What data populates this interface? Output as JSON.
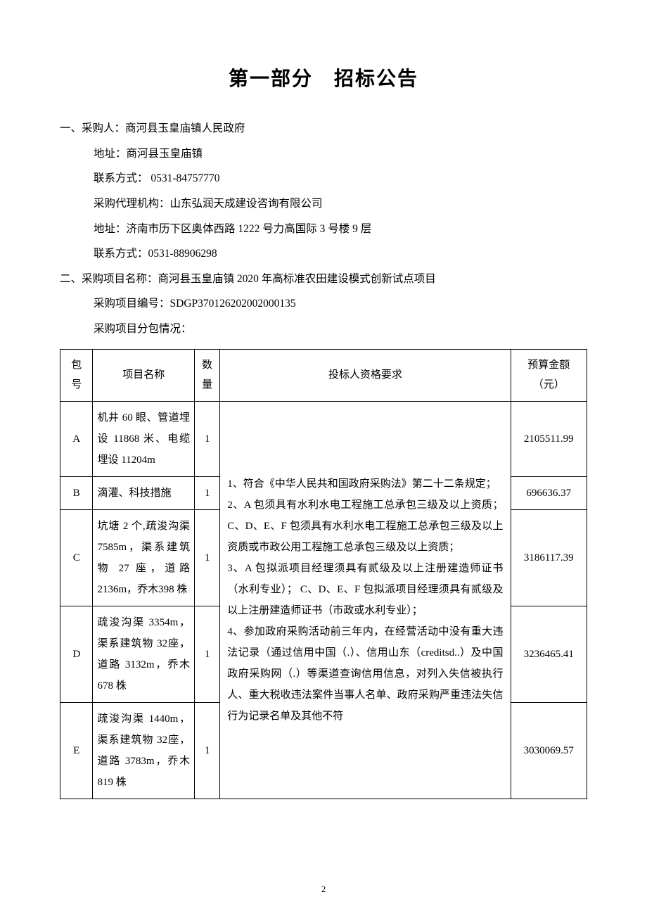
{
  "title_part1": "第一部分",
  "title_part2": "招标公告",
  "section1": {
    "heading": "一、采购人：商河县玉皇庙镇人民政府",
    "addr": "地址：商河县玉皇庙镇",
    "contact": "联系方式： 0531-84757770",
    "agency": "采购代理机构：山东弘润天成建设咨询有限公司",
    "agency_addr": "地址：济南市历下区奥体西路 1222 号力高国际 3 号楼 9 层",
    "agency_contact": "联系方式：0531-88906298"
  },
  "section2": {
    "heading": "二、采购项目名称：商河县玉皇庙镇 2020 年高标准农田建设模式创新试点项目",
    "project_no": "采购项目编号：SDGP370126202002000135",
    "subpackage": "采购项目分包情况："
  },
  "table": {
    "headers": {
      "pkg": "包号",
      "name": "项目名称",
      "qty": "数量",
      "req": "投标人资格要求",
      "budget": "预算金额（元）"
    },
    "rows": [
      {
        "pkg": "A",
        "name": "机井 60 眼、管道埋设 11868 米、电缆埋设 11204m",
        "qty": "1",
        "budget": "2105511.99"
      },
      {
        "pkg": "B",
        "name": "滴灌、科技措施",
        "qty": "1",
        "budget": "696636.37"
      },
      {
        "pkg": "C",
        "name": "坑塘 2 个,疏浚沟渠 7585m，渠系建筑物 27 座，道路 2136m，乔木398 株",
        "qty": "1",
        "budget": "3186117.39"
      },
      {
        "pkg": "D",
        "name": "疏浚沟渠 3354m，渠系建筑物 32座，道路 3132m，乔木 678 株",
        "qty": "1",
        "budget": "3236465.41"
      },
      {
        "pkg": "E",
        "name": "疏浚沟渠 1440m，渠系建筑物 32座，道路 3783m，乔木 819 株",
        "qty": "1",
        "budget": "3030069.57"
      }
    ],
    "requirements": "1、符合《中华人民共和国政府采购法》第二十二条规定；\n2、A 包须具有水利水电工程施工总承包三级及以上资质；C、D、E、F 包须具有水利水电工程施工总承包三级及以上资质或市政公用工程施工总承包三级及以上资质；\n3、A 包拟派项目经理须具有贰级及以上注册建造师证书（水利专业）； C、D、E、F 包拟派项目经理须具有贰级及以上注册建造师证书（市政或水利专业）；\n4、参加政府采购活动前三年内，在经营活动中没有重大违法记录（通过信用中国（.）、信用山东（creditsd..）及中国政府采购网（.）等渠道查询信用信息，对列入失信被执行人、重大税收违法案件当事人名单、政府采购严重违法失信行为记录名单及其他不符"
  },
  "page_number": "2"
}
